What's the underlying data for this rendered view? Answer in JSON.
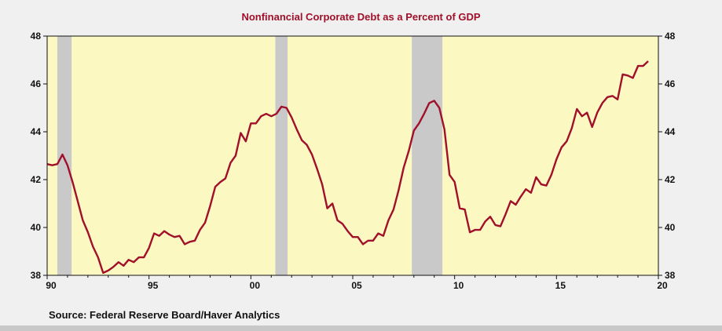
{
  "chart_data": {
    "type": "line",
    "title": "Nonfinancial Corporate Debt as a Percent of GDP",
    "xlabel": "",
    "ylabel": "",
    "xlim": [
      1990.0,
      2020.0
    ],
    "ylim": [
      38,
      48
    ],
    "y_ticks": [
      38,
      40,
      42,
      44,
      46,
      48
    ],
    "y_tick_labels": [
      "38",
      "40",
      "42",
      "44",
      "46",
      "48"
    ],
    "x_ticks": [
      1990,
      1995,
      2000,
      2005,
      2010,
      2015,
      2020
    ],
    "x_tick_labels": [
      "90",
      "95",
      "00",
      "05",
      "10",
      "15",
      "20"
    ],
    "right_axis": true,
    "grid": false,
    "recessions": [
      [
        1990.5,
        1991.2
      ],
      [
        2001.2,
        2001.8
      ],
      [
        2007.9,
        2009.4
      ]
    ],
    "series": [
      {
        "color": "#a0102a",
        "x": [
          1990.0,
          1990.25,
          1990.5,
          1990.75,
          1991.0,
          1991.25,
          1991.5,
          1991.75,
          1992.0,
          1992.25,
          1992.5,
          1992.75,
          1993.0,
          1993.25,
          1993.5,
          1993.75,
          1994.0,
          1994.25,
          1994.5,
          1994.75,
          1995.0,
          1995.25,
          1995.5,
          1995.75,
          1996.0,
          1996.25,
          1996.5,
          1996.75,
          1997.0,
          1997.25,
          1997.5,
          1997.75,
          1998.0,
          1998.25,
          1998.5,
          1998.75,
          1999.0,
          1999.25,
          1999.5,
          1999.75,
          2000.0,
          2000.25,
          2000.5,
          2000.75,
          2001.0,
          2001.25,
          2001.5,
          2001.75,
          2002.0,
          2002.25,
          2002.5,
          2002.75,
          2003.0,
          2003.25,
          2003.5,
          2003.75,
          2004.0,
          2004.25,
          2004.5,
          2004.75,
          2005.0,
          2005.25,
          2005.5,
          2005.75,
          2006.0,
          2006.25,
          2006.5,
          2006.75,
          2007.0,
          2007.25,
          2007.5,
          2007.75,
          2008.0,
          2008.25,
          2008.5,
          2008.75,
          2009.0,
          2009.25,
          2009.5,
          2009.75,
          2010.0,
          2010.25,
          2010.5,
          2010.75,
          2011.0,
          2011.25,
          2011.5,
          2011.75,
          2012.0,
          2012.25,
          2012.5,
          2012.75,
          2013.0,
          2013.25,
          2013.5,
          2013.75,
          2014.0,
          2014.25,
          2014.5,
          2014.75,
          2015.0,
          2015.25,
          2015.5,
          2015.75,
          2016.0,
          2016.25,
          2016.5,
          2016.75,
          2017.0,
          2017.25,
          2017.5,
          2017.75,
          2018.0,
          2018.25,
          2018.5,
          2018.75,
          2019.0,
          2019.25,
          2019.5
        ],
        "y": [
          42.65,
          42.6,
          42.65,
          43.05,
          42.6,
          41.9,
          41.1,
          40.3,
          39.8,
          39.2,
          38.75,
          38.1,
          38.2,
          38.35,
          38.55,
          38.4,
          38.65,
          38.55,
          38.75,
          38.75,
          39.15,
          39.75,
          39.65,
          39.85,
          39.7,
          39.6,
          39.65,
          39.3,
          39.4,
          39.45,
          39.9,
          40.2,
          40.9,
          41.7,
          41.9,
          42.05,
          42.7,
          43.0,
          43.95,
          43.6,
          44.35,
          44.35,
          44.65,
          44.75,
          44.65,
          44.75,
          45.05,
          45.0,
          44.6,
          44.1,
          43.65,
          43.45,
          43.05,
          42.45,
          41.8,
          40.8,
          41.0,
          40.3,
          40.15,
          39.85,
          39.6,
          39.6,
          39.3,
          39.45,
          39.45,
          39.75,
          39.65,
          40.3,
          40.75,
          41.55,
          42.5,
          43.2,
          44.05,
          44.35,
          44.75,
          45.2,
          45.3,
          45.0,
          44.1,
          42.2,
          41.9,
          40.8,
          40.75,
          39.8,
          39.9,
          39.9,
          40.25,
          40.45,
          40.1,
          40.05,
          40.55,
          41.1,
          40.95,
          41.3,
          41.6,
          41.45,
          42.1,
          41.8,
          41.75,
          42.2,
          42.85,
          43.35,
          43.6,
          44.15,
          44.95,
          44.65,
          44.8,
          44.2,
          44.8,
          45.2,
          45.45,
          45.5,
          45.35,
          46.4,
          46.35,
          46.25,
          46.75,
          46.75,
          46.95
        ]
      }
    ]
  },
  "source": "Source:  Federal Reserve Board/Haver Analytics",
  "colors": {
    "plot_background": "#fbf8c2",
    "recession_band": "#c9c9c9",
    "line": "#a0102a",
    "title": "#a0102a"
  }
}
